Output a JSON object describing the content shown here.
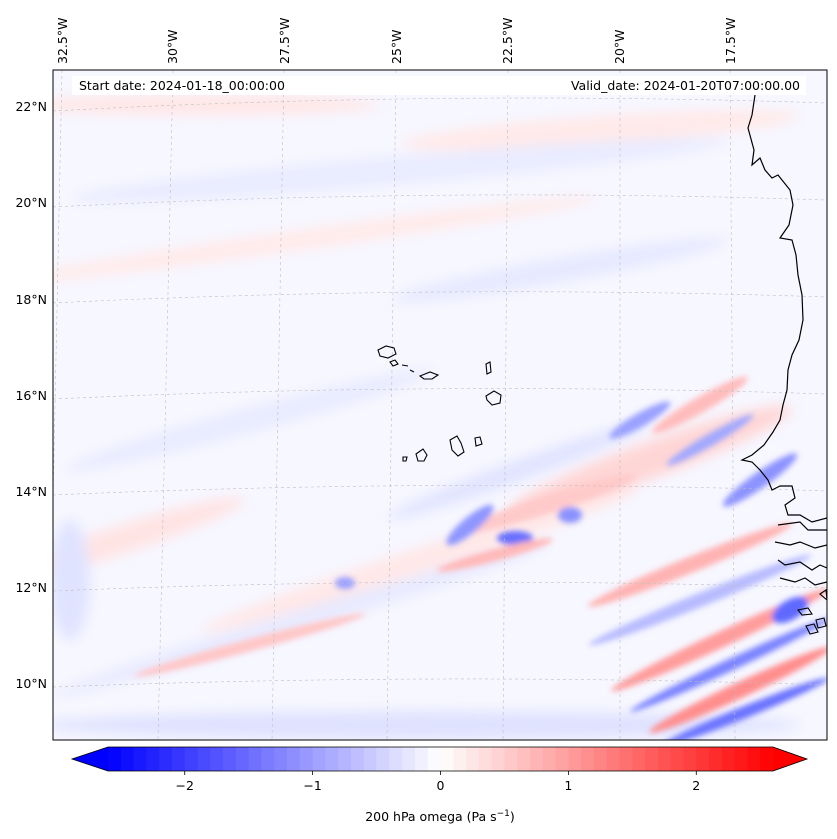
{
  "header": {
    "start_date": "Start date: 2024-01-18_00:00:00",
    "valid_date": "Valid_date: 2024-01-20T07:00:00.00"
  },
  "longitude_labels": [
    "32.5°W",
    "30°W",
    "27.5°W",
    "25°W",
    "22.5°W",
    "20°W",
    "17.5°W"
  ],
  "latitude_labels": [
    "22°N",
    "20°N",
    "18°N",
    "16°N",
    "14°N",
    "12°N",
    "10°N"
  ],
  "colorbar": {
    "ticks": [
      "−2",
      "−1",
      "0",
      "1",
      "2"
    ],
    "tick_values": [
      -2,
      -1,
      0,
      1,
      2
    ],
    "range": [
      -2.6,
      2.6
    ],
    "label_main": "200 hPa omega (Pa s",
    "label_exp": "−1",
    "label_close": ")",
    "colors": {
      "low": "#0000ff",
      "mid": "#ffffff",
      "high": "#ff0000"
    }
  },
  "colors": {
    "coast": "#000000",
    "grid": "#b8b8b8"
  }
}
